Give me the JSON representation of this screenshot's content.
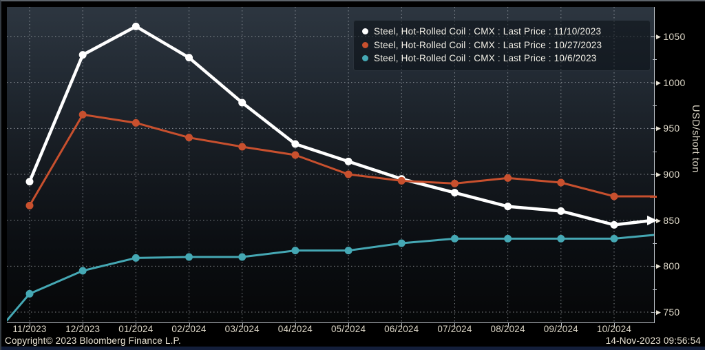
{
  "chart_data": {
    "type": "line",
    "title": "",
    "ylabel": "USD/short ton",
    "ylim": [
      750,
      1050
    ],
    "y_ticks": [
      1050,
      1000,
      950,
      900,
      850,
      800,
      750
    ],
    "y_minor_ticks": [
      1025,
      975,
      925,
      875,
      825,
      775
    ],
    "grid": "dotted",
    "legend_position": "top-right",
    "categories": [
      "11/2023",
      "12/2023",
      "01/2024",
      "02/2024",
      "03/2024",
      "04/2024",
      "05/2024",
      "06/2024",
      "07/2024",
      "08/2024",
      "09/2024",
      "10/2024"
    ],
    "series": [
      {
        "name": "Steel, Hot-Rolled Coil : CMX : Last Price : 11/10/2023",
        "color": "#ffffff",
        "values": [
          892,
          1030,
          1061,
          1027,
          978,
          933,
          914,
          895,
          880,
          865,
          860,
          845
        ],
        "edge_end_value": 850,
        "line_width": 4.5,
        "marker_radius": 5.5
      },
      {
        "name": "Steel, Hot-Rolled Coil : CMX : Last Price : 10/27/2023",
        "color": "#c8502e",
        "values": [
          866,
          965,
          956,
          940,
          930,
          921,
          900,
          893,
          890,
          896,
          891,
          876
        ],
        "edge_end_value": 876,
        "line_width": 3,
        "marker_radius": 5.5
      },
      {
        "name": "Steel, Hot-Rolled Coil : CMX : Last Price : 10/6/2023",
        "color": "#45a8b4",
        "values": [
          770,
          795,
          809,
          810,
          810,
          817,
          817,
          825,
          830,
          830,
          830,
          830
        ],
        "edge_start_value": 741,
        "edge_end_value": 834,
        "line_width": 3,
        "marker_radius": 5.5
      }
    ],
    "axis_end_markers": [
      {
        "series": 0,
        "value": 850,
        "style": "white-arrow"
      },
      {
        "series": 1,
        "value": 876,
        "style": "orange-tick",
        "color": "#c8502e"
      }
    ]
  },
  "legend": {
    "entries": [
      {
        "label": "Steel, Hot-Rolled Coil : CMX : Last Price : 11/10/2023",
        "color": "#ffffff"
      },
      {
        "label": "Steel, Hot-Rolled Coil : CMX : Last Price : 10/27/2023",
        "color": "#c8502e"
      },
      {
        "label": "Steel, Hot-Rolled Coil : CMX : Last Price : 10/6/2023",
        "color": "#45a8b4"
      }
    ]
  },
  "footer": {
    "copyright": "Copyright© 2023 Bloomberg Finance L.P.",
    "timestamp": "14-Nov-2023 09:56:54"
  }
}
